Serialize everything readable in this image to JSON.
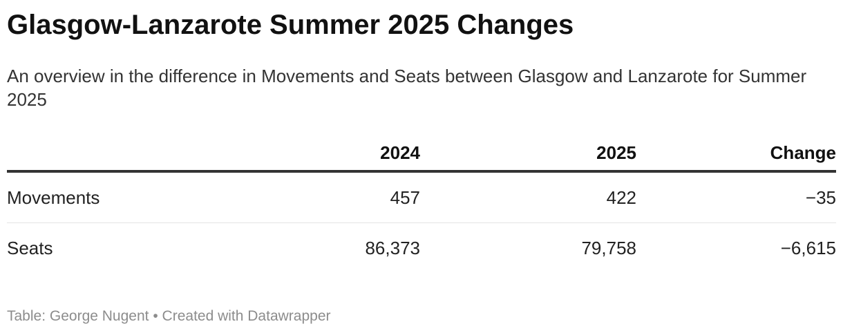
{
  "header": {
    "title": "Glasgow-Lanzarote Summer 2025 Changes",
    "subtitle": "An overview in the difference in Movements and Seats between Glasgow and Lanzarote for Summer 2025"
  },
  "chart_data": {
    "type": "table",
    "columns": [
      "",
      "2024",
      "2025",
      "Change"
    ],
    "rows": [
      {
        "label": "Movements",
        "cells": [
          "457",
          "422",
          "−35"
        ]
      },
      {
        "label": "Seats",
        "cells": [
          "86,373",
          "79,758",
          "−6,615"
        ]
      }
    ],
    "values": {
      "Movements": {
        "2024": 457,
        "2025": 422,
        "Change": -35
      },
      "Seats": {
        "2024": 86373,
        "2025": 79758,
        "Change": -6615
      }
    }
  },
  "footer": {
    "source_label": "Table:",
    "source": "George Nugent",
    "separator": "•",
    "credit": "Created with Datawrapper"
  },
  "colors": {
    "text": "#1d1d1d",
    "header_rule": "#333333",
    "row_divider": "#e4e4e4",
    "footer_text": "#8c8c8c"
  }
}
